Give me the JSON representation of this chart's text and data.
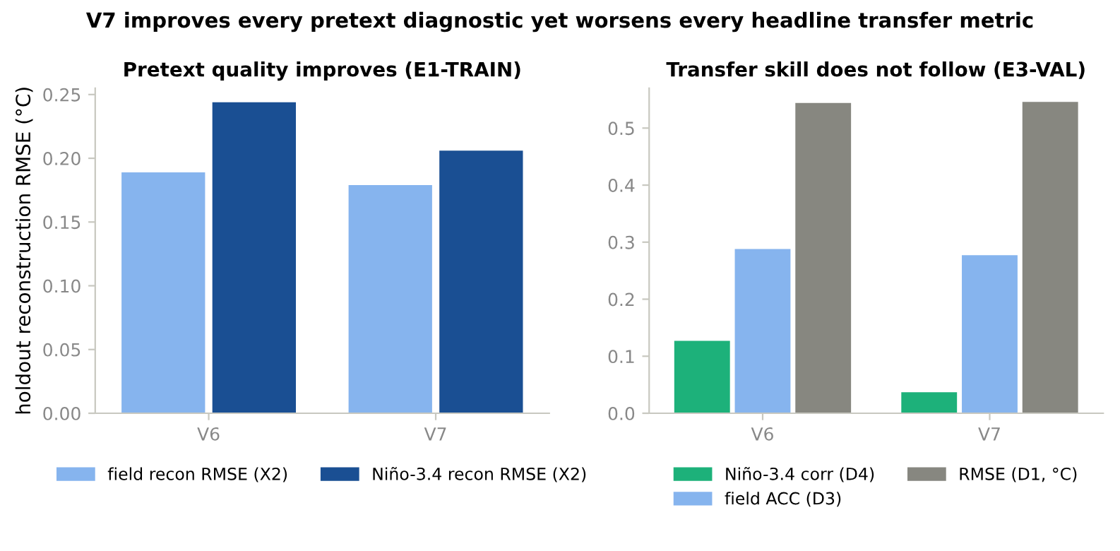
{
  "chart_data": [
    {
      "type": "bar",
      "title": "Pretext quality improves (E1-TRAIN)",
      "ylabel": "holdout reconstruction RMSE (°C)",
      "categories": [
        "V6",
        "V7"
      ],
      "annotations": [
        "V7 improves every pretext diagnostic yet worsens every headline transfer metric"
      ],
      "series": [
        {
          "name": "field recon RMSE (X2)",
          "color": "#86b4ee",
          "values": [
            0.189,
            0.179
          ]
        },
        {
          "name": "Niño-3.4 recon RMSE (X2)",
          "color": "#1a4f93",
          "values": [
            0.244,
            0.206
          ]
        }
      ],
      "ylim": [
        0,
        0.255
      ],
      "yticks": [
        {
          "value": 0,
          "label": "0.00"
        },
        0.05,
        {
          "value": 0.1,
          "label": "0.10"
        },
        0.15,
        {
          "value": 0.2,
          "label": "0.20"
        },
        0.25
      ],
      "legend": "bottom"
    },
    {
      "type": "bar",
      "title": "Transfer skill does not follow (E3-VAL)",
      "categories": [
        "V6",
        "V7"
      ],
      "series": [
        {
          "name": "Niño-3.4 corr (D4)",
          "color": "#1db17a",
          "values": [
            0.127,
            0.037
          ]
        },
        {
          "name": "field ACC (D3)",
          "color": "#86b4ee",
          "values": [
            0.288,
            0.277
          ]
        },
        {
          "name": "RMSE (D1, °C)",
          "color": "#878780",
          "values": [
            0.544,
            0.546
          ]
        }
      ],
      "ylim": [
        0,
        0.57
      ],
      "yticks": [
        {
          "value": 0,
          "label": "0.0"
        },
        0.1,
        0.2,
        0.3,
        0.4,
        0.5
      ],
      "legend": "bottom"
    }
  ]
}
